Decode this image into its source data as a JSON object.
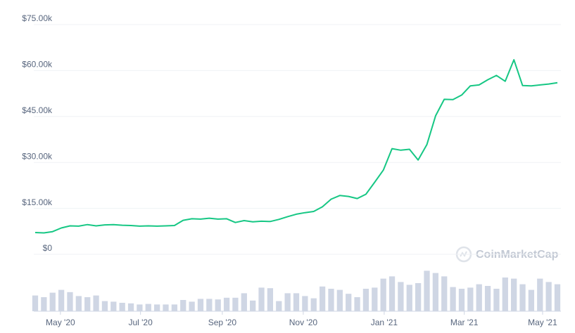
{
  "chart_data": {
    "type": "line",
    "watermark": "CoinMarketCap",
    "series": [
      {
        "name": "Price",
        "color": "#16c784",
        "values": [
          7.1,
          7.0,
          7.4,
          8.6,
          9.3,
          9.2,
          9.7,
          9.3,
          9.6,
          9.7,
          9.5,
          9.4,
          9.2,
          9.3,
          9.2,
          9.3,
          9.4,
          11.1,
          11.6,
          11.5,
          11.8,
          11.5,
          11.6,
          10.4,
          11.0,
          10.6,
          10.8,
          10.7,
          11.4,
          12.3,
          13.1,
          13.6,
          14.0,
          15.5,
          18.0,
          19.2,
          18.9,
          18.2,
          19.6,
          23.5,
          27.5,
          34.5,
          34.0,
          34.3,
          30.8,
          35.8,
          45.2,
          50.6,
          50.5,
          52.0,
          55.0,
          55.3,
          57.0,
          58.4,
          56.5,
          63.5,
          55.1,
          55.0,
          55.3,
          55.6,
          56.0
        ]
      },
      {
        "name": "Volume",
        "type": "bar",
        "axis": "y2",
        "color": "#cfd6e4",
        "values": [
          28,
          25,
          33,
          38,
          34,
          27,
          25,
          28,
          18,
          17,
          15,
          14,
          12,
          13,
          12,
          12,
          12,
          20,
          17,
          22,
          22,
          21,
          24,
          24,
          32,
          19,
          42,
          41,
          18,
          32,
          32,
          27,
          23,
          44,
          40,
          38,
          31,
          25,
          40,
          42,
          58,
          62,
          52,
          47,
          50,
          72,
          68,
          62,
          43,
          40,
          42,
          48,
          45,
          40,
          60,
          58,
          48,
          38,
          58,
          52,
          48
        ]
      }
    ],
    "ylim": [
      0,
      75
    ],
    "yticks": [
      {
        "value": 0,
        "label": "$0"
      },
      {
        "value": 15,
        "label": "$15.00k"
      },
      {
        "value": 30,
        "label": "$30.00k"
      },
      {
        "value": 45,
        "label": "$45.00k"
      },
      {
        "value": 60,
        "label": "$60.00k"
      },
      {
        "value": 75,
        "label": "$75.00k"
      }
    ],
    "y2lim": [
      0,
      100
    ],
    "xlim": [
      0,
      60
    ],
    "xticks": [
      {
        "value": 2.9,
        "label": "May '20"
      },
      {
        "value": 12.1,
        "label": "Jul '20"
      },
      {
        "value": 21.5,
        "label": "Sep '20"
      },
      {
        "value": 30.8,
        "label": "Nov '20"
      },
      {
        "value": 40.1,
        "label": "Jan '21"
      },
      {
        "value": 49.3,
        "label": "Mar '21"
      },
      {
        "value": 58.3,
        "label": "May '21"
      }
    ],
    "grid": true
  }
}
